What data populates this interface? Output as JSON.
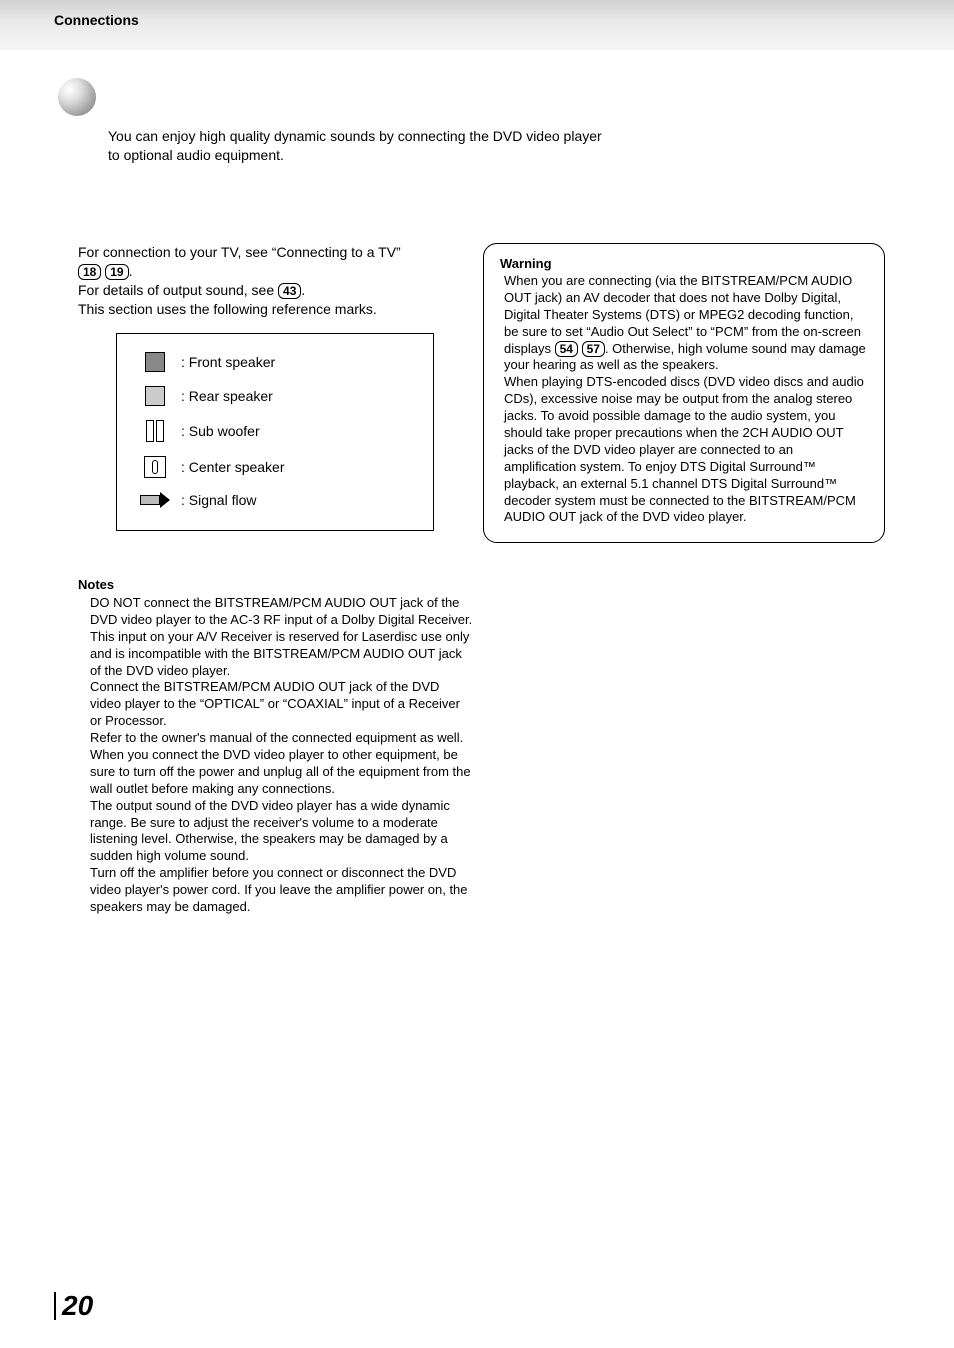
{
  "header": {
    "title": "Connections"
  },
  "intro": {
    "line1": "You can enjoy high quality dynamic sounds by connecting the DVD video player",
    "line2": "to optional audio equipment."
  },
  "body": {
    "conn_tv_prefix": "For connection to your TV, see “Connecting to a TV”",
    "ref18": "18",
    "ref19": "19",
    "period1": ".",
    "details_prefix": "For details of output sound, see ",
    "ref43": "43",
    "period2": ".",
    "ref_marks": "This section uses the following reference marks."
  },
  "legend": {
    "front": ": Front speaker",
    "rear": ": Rear speaker",
    "sub": ": Sub woofer",
    "center": ": Center speaker",
    "signal": ": Signal flow"
  },
  "notes": {
    "heading": "Notes",
    "n1": "DO NOT connect the BITSTREAM/PCM AUDIO OUT jack of the DVD video player to the AC-3 RF input of a Dolby Digital Receiver.  This input on your A/V Receiver is reserved for Laserdisc use only and is incompatible with the BITSTREAM/PCM AUDIO OUT jack of the DVD video player.",
    "n2": "Connect the BITSTREAM/PCM AUDIO OUT jack of the DVD video player to the “OPTICAL” or “COAXIAL” input of a Receiver or Processor.",
    "n3": "Refer to the owner's manual of the connected equipment as well.",
    "n4": "When you connect the DVD video player to other equipment, be sure to turn off the power and unplug all of the equipment from the wall outlet before making any connections.",
    "n5": "The output sound of the DVD video player has a wide dynamic range. Be sure to adjust the receiver's volume to a moderate listening level. Otherwise, the speakers may be damaged by a sudden high volume sound.",
    "n6": "Turn off the amplifier before you connect or disconnect the DVD video player's power cord. If you leave the amplifier power on, the speakers may be damaged."
  },
  "warning": {
    "heading": "Warning",
    "p1a": "When you are connecting (via the BITSTREAM/PCM AUDIO OUT jack) an AV decoder that does not have Dolby Digital, Digital Theater Systems (DTS) or MPEG2 decoding function, be sure to set “Audio Out Select” to “PCM” from the on-screen displays ",
    "ref54": "54",
    "ref57": "57",
    "p1b": ". Otherwise, high volume sound may damage your hearing as well as the speakers.",
    "p2": "When playing DTS-encoded discs (DVD video discs and audio CDs), excessive noise may be output from the analog stereo jacks.  To avoid possible damage to the audio system, you should take proper precautions when the 2CH AUDIO OUT jacks of the DVD video player are connected to an amplification system.  To enjoy DTS Digital Surround™ playback, an external 5.1 channel DTS Digital Surround™ decoder system must be connected to the BITSTREAM/PCM AUDIO OUT jack of the DVD video player."
  },
  "page": {
    "number": "20"
  }
}
